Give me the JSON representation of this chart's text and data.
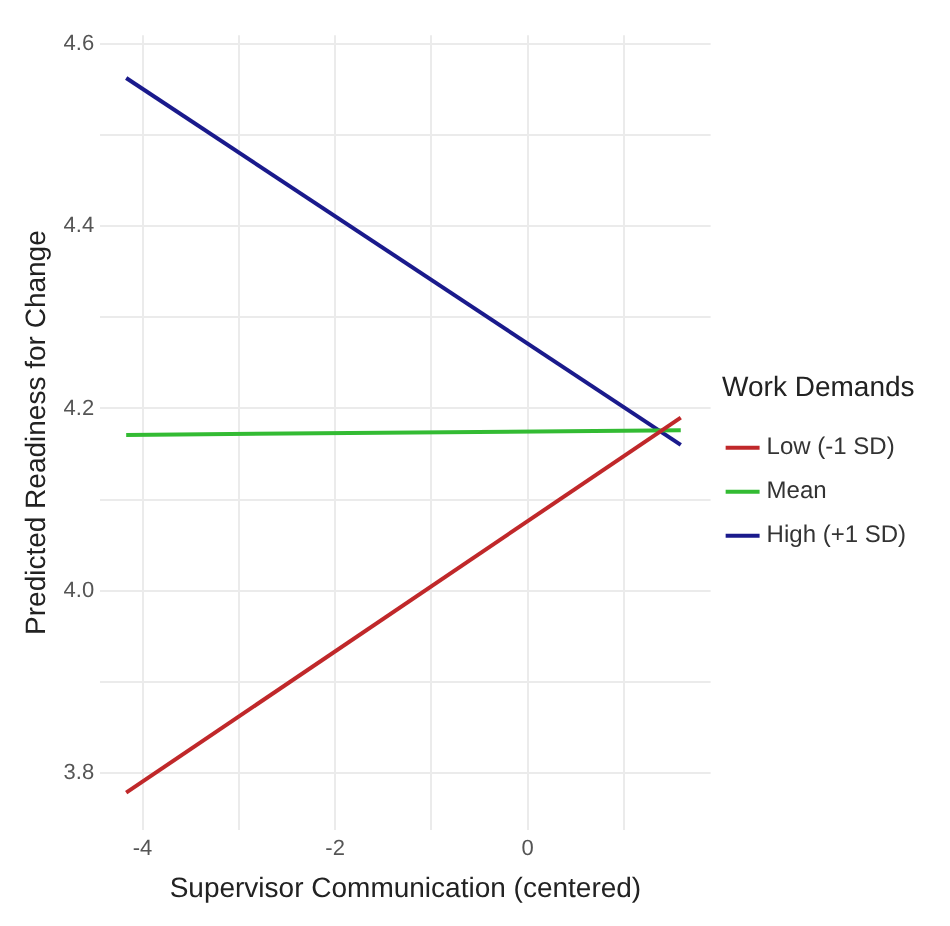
{
  "chart_data": {
    "type": "line",
    "xlabel": "Supervisor Communication (centered)",
    "ylabel": "Predicted Readiness for Change",
    "legend_title": "Work Demands",
    "legend": "right",
    "grid": true,
    "marker": "none",
    "line_style": "solid",
    "x": [
      -4.17,
      1.59
    ],
    "xlim": [
      -4.44,
      1.9
    ],
    "ylim": [
      3.737,
      4.61
    ],
    "xticks": [
      -4,
      {
        "value": -3,
        "label": null
      },
      -2,
      {
        "value": -1,
        "label": null
      },
      0,
      {
        "value": 1,
        "label": null
      }
    ],
    "yticks": [
      3.8,
      {
        "value": 3.9,
        "label": null
      },
      "4.0",
      {
        "value": 4.1,
        "label": null
      },
      4.2,
      {
        "value": 4.3,
        "label": null
      },
      4.4,
      {
        "value": 4.5,
        "label": null
      },
      4.6
    ],
    "series": [
      {
        "name": "Low (-1 SD)",
        "color": "#c0282a",
        "values": [
          3.778,
          4.19
        ]
      },
      {
        "name": "Mean",
        "color": "#33bb33",
        "values": [
          4.171,
          4.176
        ]
      },
      {
        "name": "High (+1 SD)",
        "color": "#1a1a8c",
        "values": [
          4.563,
          4.16
        ]
      }
    ]
  }
}
